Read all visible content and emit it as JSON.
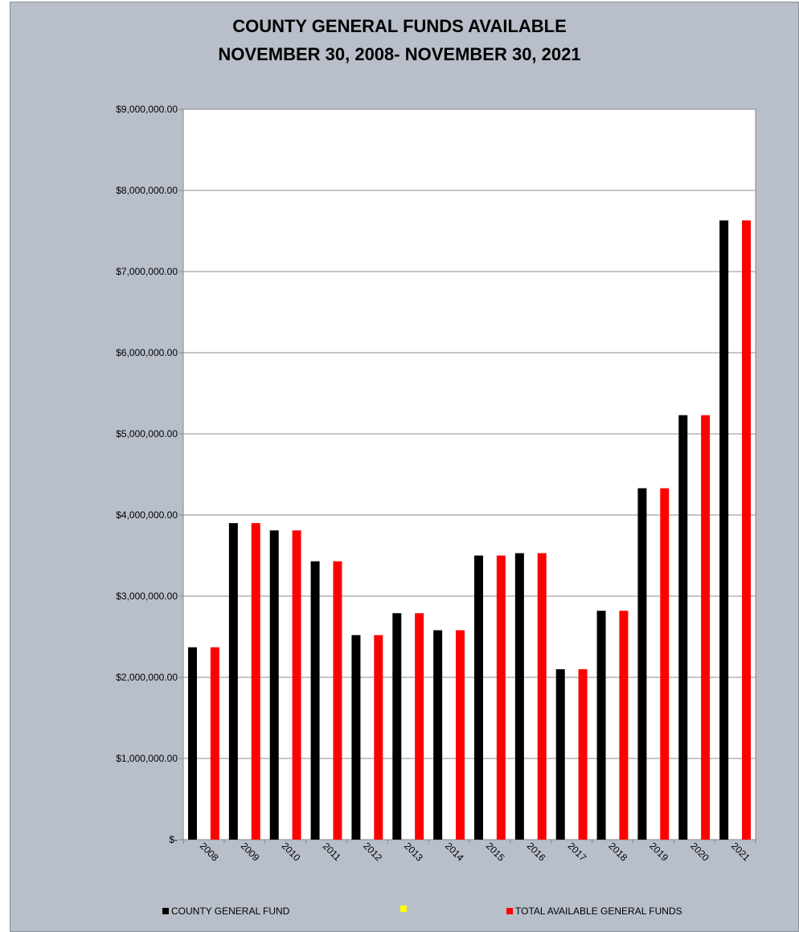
{
  "chart_data": {
    "type": "bar",
    "title": "COUNTY GENERAL FUNDS AVAILABLE",
    "subtitle": "NOVEMBER 30, 2008- NOVEMBER 30, 2021",
    "xlabel": "",
    "ylabel": "",
    "ylim": [
      0,
      9000000
    ],
    "yticks": [
      "$-",
      "$1,000,000.00",
      "$2,000,000.00",
      "$3,000,000.00",
      "$4,000,000.00",
      "$5,000,000.00",
      "$6,000,000.00",
      "$7,000,000.00",
      "$8,000,000.00",
      "$9,000,000.00"
    ],
    "categories": [
      "2008",
      "2009",
      "2010",
      "2011",
      "2012",
      "2013",
      "2014",
      "2015",
      "2016",
      "2017",
      "2018",
      "2019",
      "2020",
      "2021"
    ],
    "series": [
      {
        "name": "COUNTY GENERAL FUND",
        "color": "#000000",
        "values": [
          2370000,
          3900000,
          3810000,
          3430000,
          2520000,
          2790000,
          2580000,
          3500000,
          3530000,
          2100000,
          2820000,
          4330000,
          5230000,
          7630000
        ]
      },
      {
        "name": "",
        "color": "#ffff00",
        "values": [
          0,
          0,
          0,
          0,
          0,
          0,
          0,
          0,
          0,
          0,
          0,
          0,
          0,
          0
        ]
      },
      {
        "name": "TOTAL AVAILABLE GENERAL FUNDS",
        "color": "#ff0000",
        "values": [
          2370000,
          3900000,
          3810000,
          3430000,
          2520000,
          2790000,
          2580000,
          3500000,
          3530000,
          2100000,
          2820000,
          4330000,
          5230000,
          7630000
        ]
      }
    ],
    "grid": true,
    "legend_position": "bottom"
  }
}
